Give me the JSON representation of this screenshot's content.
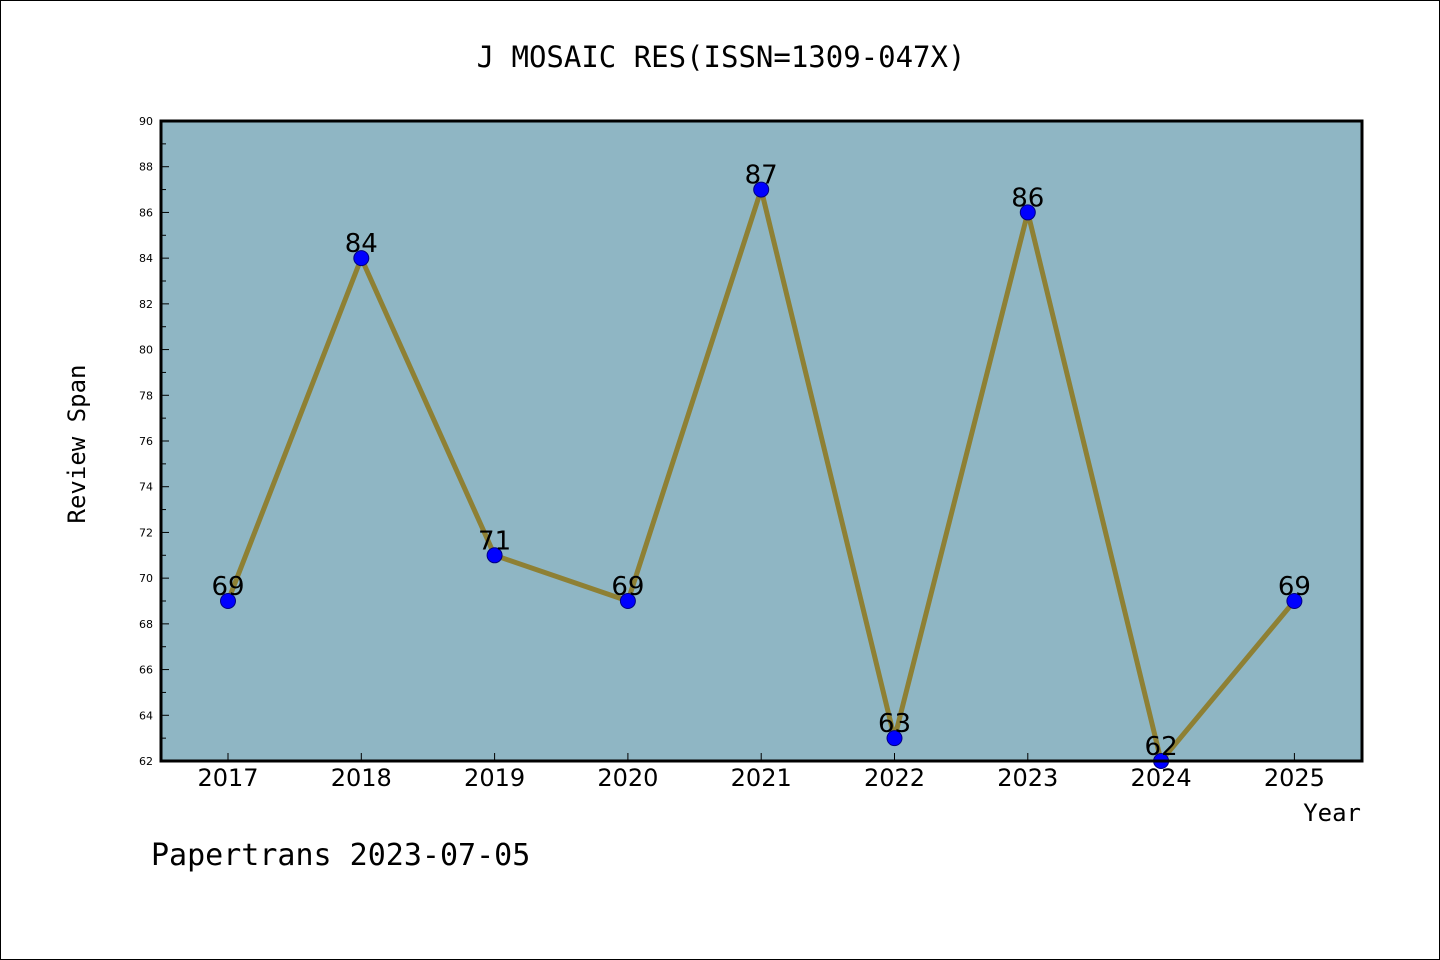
{
  "chart_data": {
    "type": "line",
    "title": "J MOSAIC RES(ISSN=1309-047X)",
    "xlabel": "Year",
    "ylabel": "Review Span",
    "categories": [
      "2017",
      "2018",
      "2019",
      "2020",
      "2021",
      "2022",
      "2023",
      "2024",
      "2025"
    ],
    "values": [
      69,
      84,
      71,
      69,
      87,
      63,
      86,
      62,
      69
    ],
    "ylim": [
      62,
      90
    ],
    "ytick_step": 2,
    "grid": false,
    "legend": "none",
    "data_labels": true,
    "colors": {
      "plot_background": "#8fb6c4",
      "line": "#8e8034",
      "marker": "#0000ff",
      "marker_edge": "#000080",
      "axes": "#000000"
    }
  },
  "footer": "Papertrans 2023-07-05"
}
